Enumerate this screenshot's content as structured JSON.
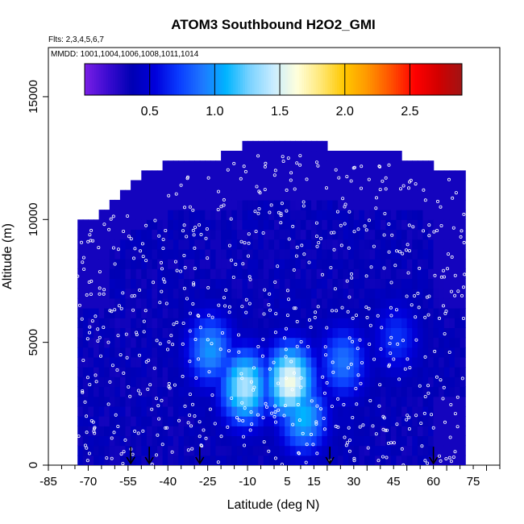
{
  "chart_data": {
    "type": "heatmap",
    "title": "ATOM3 Southbound H2O2_GMI",
    "flights_note": "Flts: 2,3,4,5,6,7",
    "dates_note": "MMDD: 1001,1004,1006,1008,1011,1014",
    "xlabel": "Latitude (deg N)",
    "ylabel": "Altitude (m)",
    "xlim": [
      -85,
      85
    ],
    "ylim": [
      0,
      17000
    ],
    "x_ticks": [
      -85,
      -70,
      -55,
      -40,
      -25,
      -10,
      5,
      15,
      30,
      45,
      60,
      75
    ],
    "y_ticks": [
      0,
      5000,
      10000,
      15000
    ],
    "colorbar": {
      "min": 0,
      "max": 2.9,
      "ticks": [
        0.5,
        1.0,
        1.5,
        2.0,
        2.5
      ],
      "tick_labels": [
        "0.5",
        "1.0",
        "1.5",
        "2.0",
        "2.5"
      ],
      "colors": [
        "#7a1fe6",
        "#3a0bd0",
        "#0000b4",
        "#0000dc",
        "#0a3cff",
        "#1e78ff",
        "#00b4ff",
        "#7ad2ff",
        "#c8ecff",
        "#ffffdc",
        "#ffe878",
        "#ffc800",
        "#ff9600",
        "#ff5000",
        "#ff0000",
        "#d20000",
        "#a01414"
      ]
    },
    "arrows_lat": [
      -54,
      -47,
      -28,
      21,
      60
    ],
    "altitude_profile": [
      {
        "lat": -70,
        "top": 9700
      },
      {
        "lat": -60,
        "top": 10700
      },
      {
        "lat": -50,
        "top": 11700
      },
      {
        "lat": -40,
        "top": 12200
      },
      {
        "lat": -25,
        "top": 12200
      },
      {
        "lat": -10,
        "top": 12900
      },
      {
        "lat": 5,
        "top": 12900
      },
      {
        "lat": 15,
        "top": 12900
      },
      {
        "lat": 30,
        "top": 12500
      },
      {
        "lat": 45,
        "top": 12500
      },
      {
        "lat": 60,
        "top": 12000
      },
      {
        "lat": 70,
        "top": 11800
      }
    ],
    "high_regions": [
      {
        "lat": -12,
        "alt": 3000,
        "value": 1.4
      },
      {
        "lat": 5,
        "alt": 3200,
        "value": 1.6
      },
      {
        "lat": 10,
        "alt": 1800,
        "value": 1.1
      },
      {
        "lat": -25,
        "alt": 4500,
        "value": 1.0
      },
      {
        "lat": 25,
        "alt": 4000,
        "value": 0.9
      },
      {
        "lat": 45,
        "alt": 5000,
        "value": 0.7
      }
    ]
  }
}
